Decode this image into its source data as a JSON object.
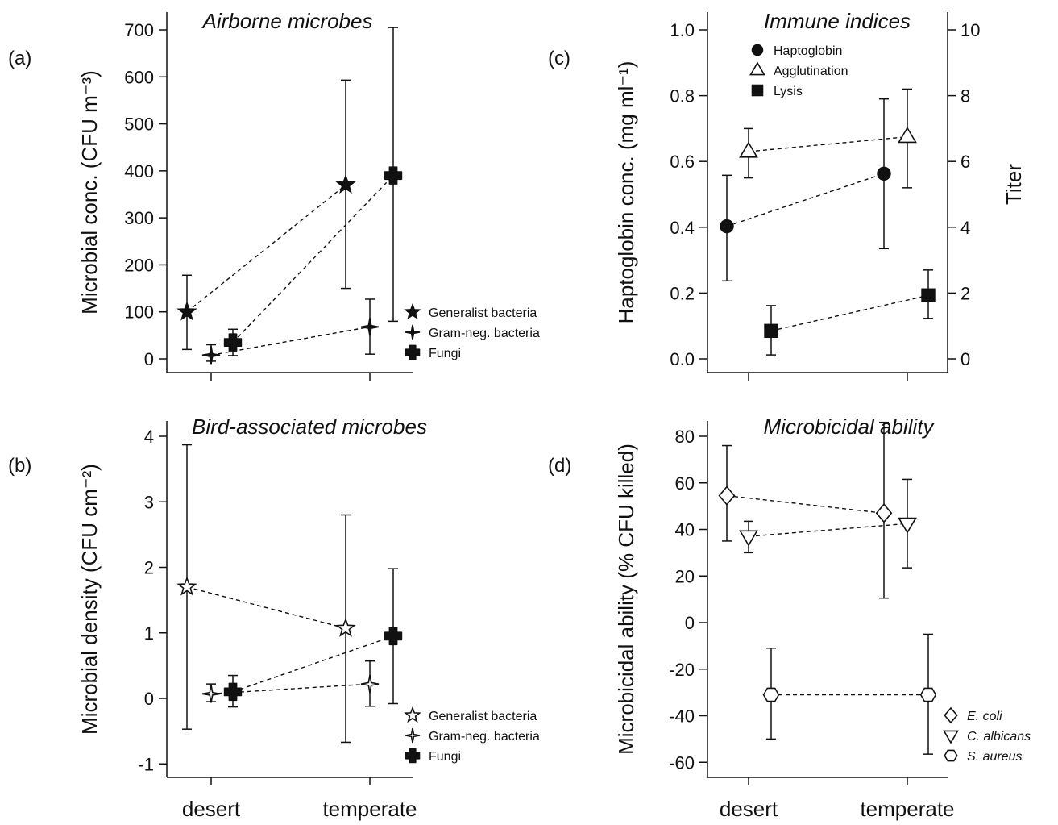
{
  "chart_data": [
    {
      "id": "a",
      "panel_label": "(a)",
      "type": "scatter",
      "title": "Airborne microbes",
      "ylabel": "Microbial conc. (CFU m⁻³)",
      "ylim": [
        0,
        700
      ],
      "yticks": [
        0,
        100,
        200,
        300,
        400,
        500,
        600,
        700
      ],
      "categories": [
        "desert",
        "temperate"
      ],
      "show_x_labels": false,
      "legend_position": "right",
      "series": [
        {
          "name": "Generalist bacteria",
          "marker": "star-filled",
          "values": [
            100,
            370
          ],
          "lower": [
            20,
            150
          ],
          "upper": [
            178,
            593
          ]
        },
        {
          "name": "Gram-neg. bacteria",
          "marker": "sparkle-filled",
          "values": [
            8,
            68
          ],
          "lower": [
            -5,
            10
          ],
          "upper": [
            30,
            127
          ]
        },
        {
          "name": "Fungi",
          "marker": "cross-filled",
          "values": [
            35,
            390
          ],
          "lower": [
            7,
            80
          ],
          "upper": [
            63,
            705
          ]
        }
      ]
    },
    {
      "id": "b",
      "panel_label": "(b)",
      "type": "scatter",
      "title": "Bird-associated microbes",
      "ylabel": "Microbial density (CFU cm⁻²)",
      "ylim": [
        -1,
        4
      ],
      "yticks": [
        -1,
        0,
        1,
        2,
        3,
        4
      ],
      "categories": [
        "desert",
        "temperate"
      ],
      "show_x_labels": true,
      "legend_position": "right",
      "series": [
        {
          "name": "Generalist bacteria",
          "marker": "star-open",
          "values": [
            1.7,
            1.07
          ],
          "lower": [
            -0.47,
            -0.67
          ],
          "upper": [
            3.87,
            2.8
          ]
        },
        {
          "name": "Gram-neg. bacteria",
          "marker": "sparkle-open",
          "values": [
            0.07,
            0.22
          ],
          "lower": [
            -0.05,
            -0.12
          ],
          "upper": [
            0.22,
            0.57
          ]
        },
        {
          "name": "Fungi",
          "marker": "cross-filled",
          "values": [
            0.1,
            0.95
          ],
          "lower": [
            -0.13,
            -0.08
          ],
          "upper": [
            0.35,
            1.98
          ]
        }
      ]
    },
    {
      "id": "c",
      "panel_label": "(c)",
      "type": "scatter",
      "title": "Immune indices",
      "ylabel": "Haptoglobin conc. (mg ml⁻¹)",
      "ylim": [
        0,
        1
      ],
      "yticks": [
        0,
        0.2,
        0.4,
        0.6,
        0.8,
        1
      ],
      "yticklabels": [
        "0.0",
        "0.2",
        "0.4",
        "0.6",
        "0.8",
        "1.0"
      ],
      "y2label": "Titer",
      "y2lim": [
        0,
        10
      ],
      "y2ticks": [
        0,
        2,
        4,
        6,
        8,
        10
      ],
      "categories": [
        "desert",
        "temperate"
      ],
      "show_x_labels": false,
      "legend_position": "top-left",
      "series": [
        {
          "name": "Haptoglobin",
          "marker": "circle-filled",
          "axis": "left",
          "values": [
            0.403,
            0.563
          ],
          "lower": [
            0.237,
            0.335
          ],
          "upper": [
            0.558,
            0.79
          ]
        },
        {
          "name": "Agglutination",
          "marker": "triangle-open",
          "axis": "right",
          "values": [
            6.3,
            6.75
          ],
          "lower": [
            5.5,
            5.2
          ],
          "upper": [
            7.0,
            8.2
          ]
        },
        {
          "name": "Lysis",
          "marker": "square-filled",
          "axis": "right",
          "values": [
            0.85,
            1.93
          ],
          "lower": [
            0.12,
            1.23
          ],
          "upper": [
            1.62,
            2.7
          ]
        }
      ]
    },
    {
      "id": "d",
      "panel_label": "(d)",
      "type": "scatter",
      "title": "Microbicidal ability",
      "ylabel": "Microbicidal ability (% CFU killed)",
      "ylim": [
        -60,
        80
      ],
      "yticks": [
        -60,
        -40,
        -20,
        0,
        20,
        40,
        60,
        80
      ],
      "categories": [
        "desert",
        "temperate"
      ],
      "show_x_labels": true,
      "legend_position": "bottom-right",
      "series": [
        {
          "name": "E. coli",
          "marker": "diamond-open",
          "italic": true,
          "values": [
            54.5,
            47
          ],
          "lower": [
            35,
            10.5
          ],
          "upper": [
            76,
            86
          ]
        },
        {
          "name": "C. albicans",
          "marker": "triangle-down-open",
          "italic": true,
          "values": [
            37,
            42.5
          ],
          "lower": [
            30,
            23.5
          ],
          "upper": [
            43.5,
            61.5
          ]
        },
        {
          "name": "S. aureus",
          "marker": "hexagon-open",
          "italic": true,
          "values": [
            -31,
            -31
          ],
          "lower": [
            -50,
            -56.5
          ],
          "upper": [
            -11,
            -5
          ]
        }
      ]
    }
  ]
}
